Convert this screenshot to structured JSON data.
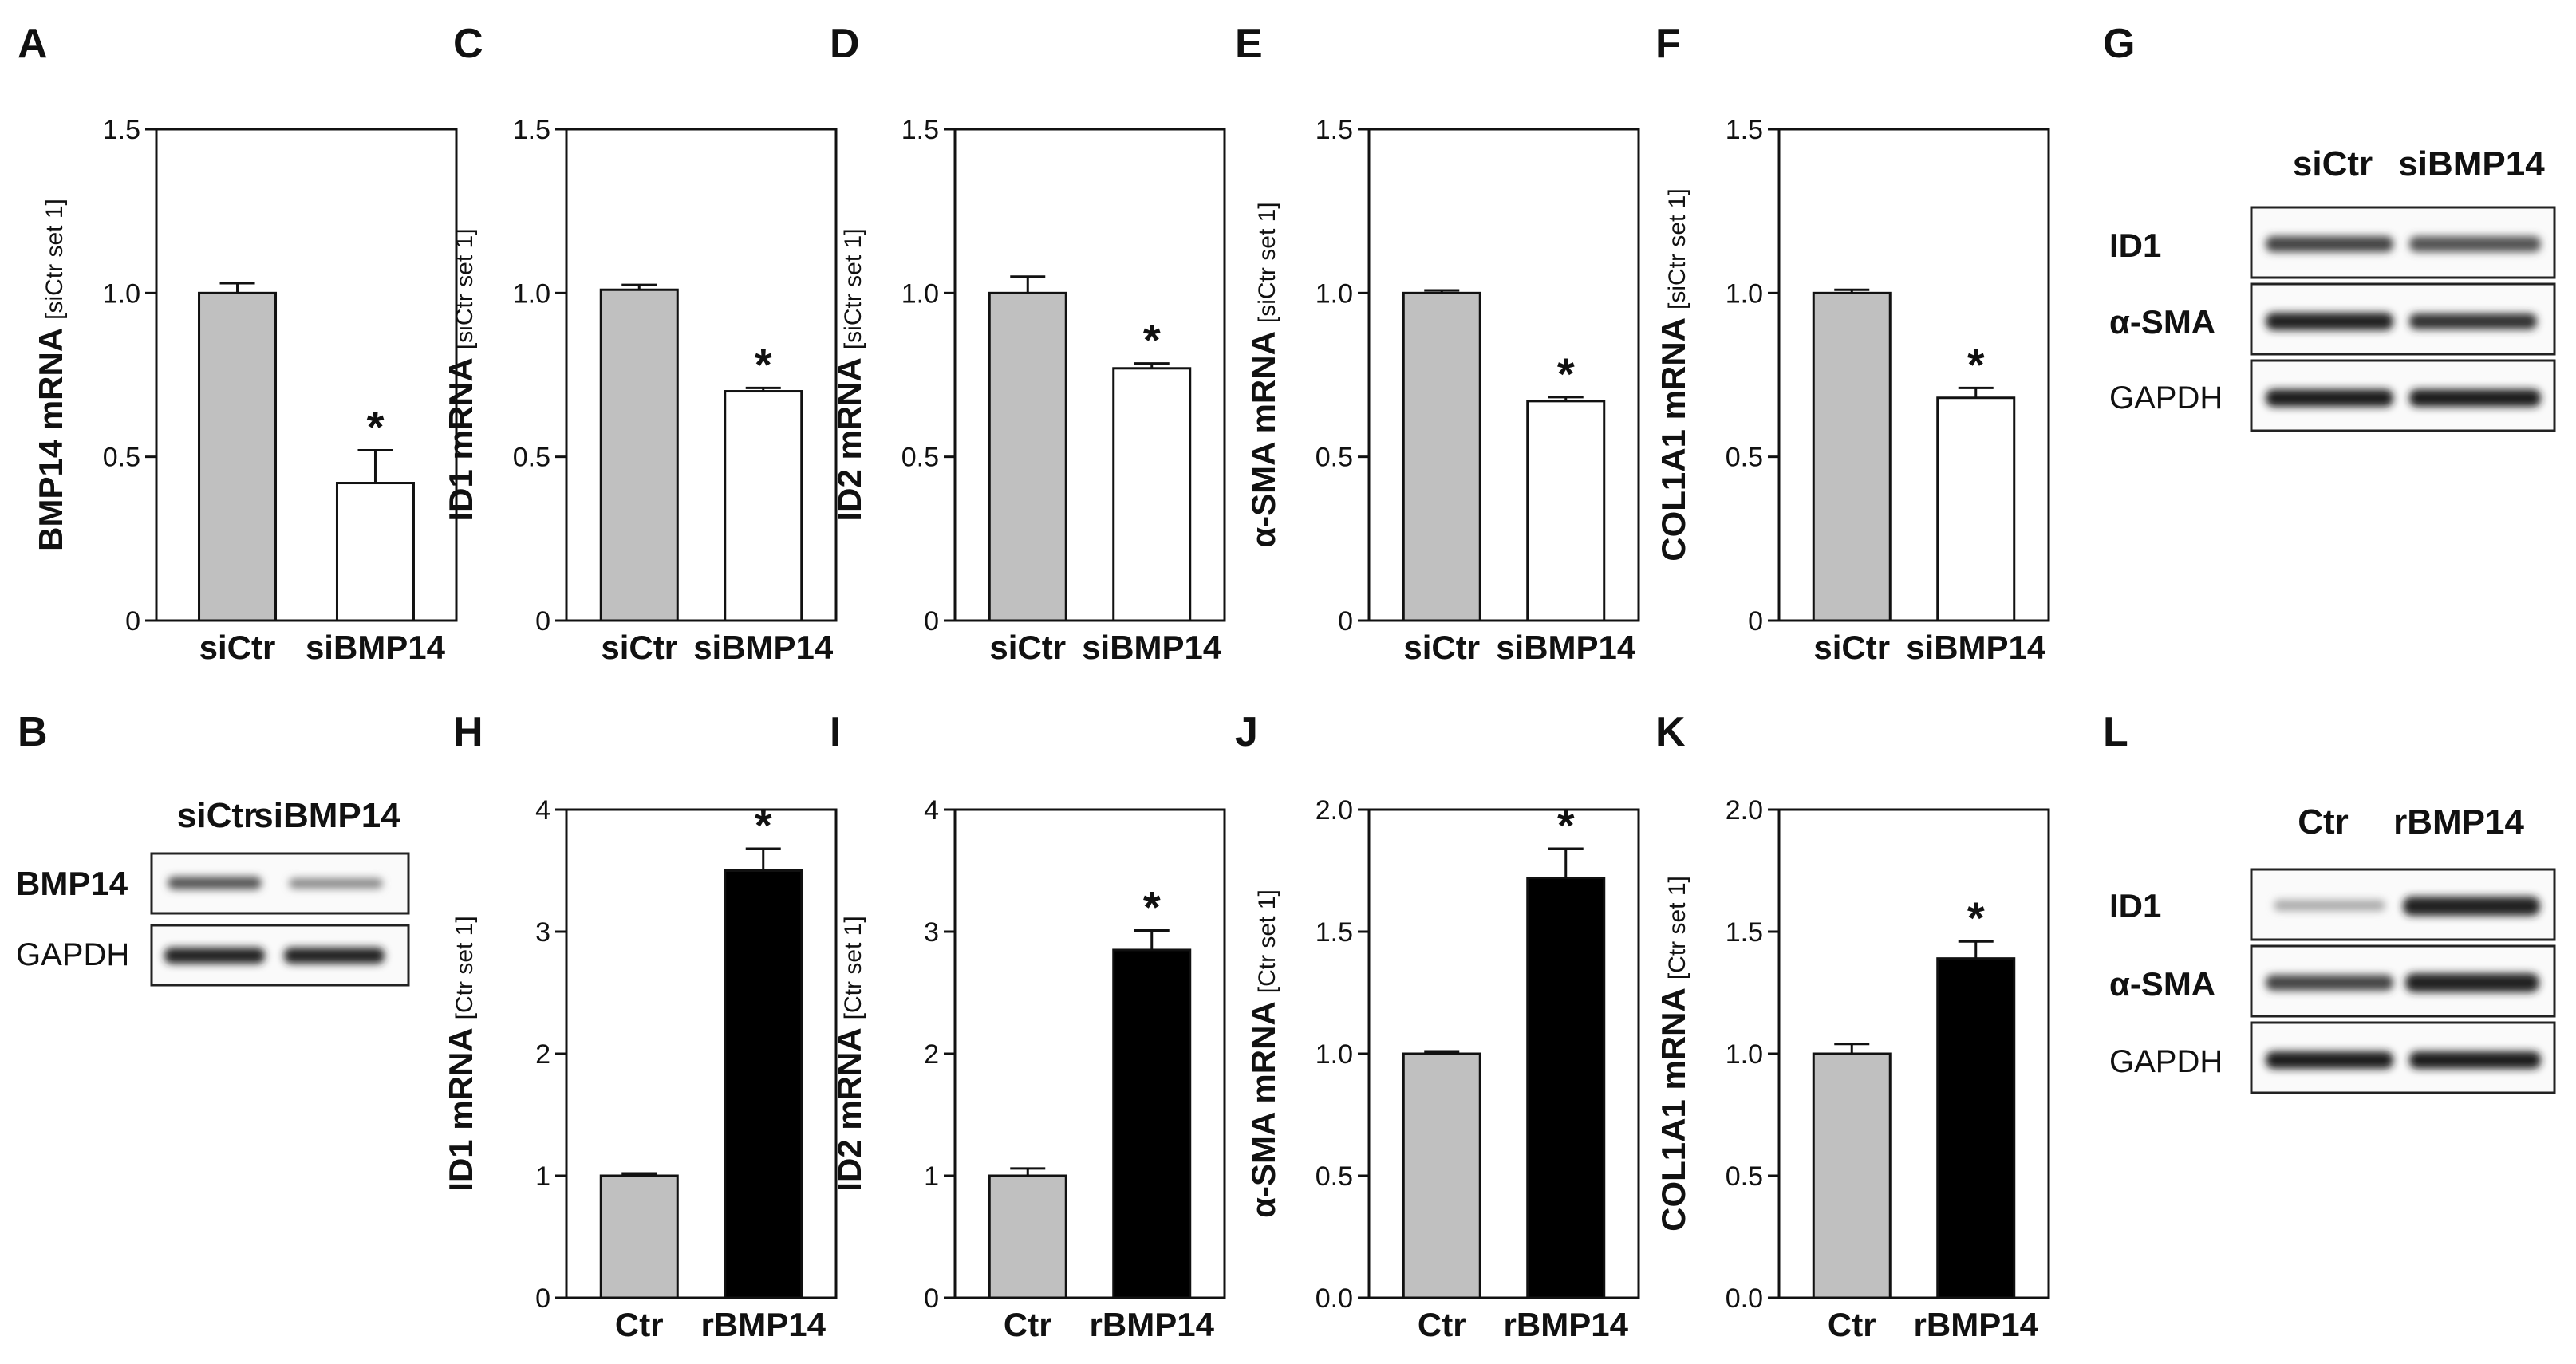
{
  "colors": {
    "control_bar": "#c0c0c0",
    "knockdown_bar": "#ffffff",
    "treated_bar": "#000000",
    "axis": "#111111"
  },
  "panels": {
    "A": "A",
    "B": "B",
    "C": "C",
    "D": "D",
    "E": "E",
    "F": "F",
    "G": "G",
    "H": "H",
    "I": "I",
    "J": "J",
    "K": "K",
    "L": "L"
  },
  "chart_data": [
    {
      "id": "A",
      "type": "bar",
      "categories": [
        "siCtr",
        "siBMP14"
      ],
      "values": [
        1.0,
        0.42
      ],
      "errors": [
        0.03,
        0.1
      ],
      "colors": [
        "#c0c0c0",
        "#ffffff"
      ],
      "significant": [
        false,
        true
      ],
      "ylabel": "BMP14 mRNA",
      "yunit": "[siCtr set 1]",
      "ylim": [
        0,
        1.5
      ],
      "ticks": [
        0,
        0.5,
        1.0,
        1.5
      ],
      "tick_labels": [
        "0",
        "0.5",
        "1.0",
        "1.5"
      ]
    },
    {
      "id": "C",
      "type": "bar",
      "categories": [
        "siCtr",
        "siBMP14"
      ],
      "values": [
        1.01,
        0.7
      ],
      "errors": [
        0.015,
        0.01
      ],
      "colors": [
        "#c0c0c0",
        "#ffffff"
      ],
      "significant": [
        false,
        true
      ],
      "ylabel": "ID1 mRNA",
      "yunit": "[siCtr set 1]",
      "ylim": [
        0,
        1.5
      ],
      "ticks": [
        0,
        0.5,
        1.0,
        1.5
      ],
      "tick_labels": [
        "0",
        "0.5",
        "1.0",
        "1.5"
      ]
    },
    {
      "id": "D",
      "type": "bar",
      "categories": [
        "siCtr",
        "siBMP14"
      ],
      "values": [
        1.0,
        0.77
      ],
      "errors": [
        0.05,
        0.015
      ],
      "colors": [
        "#c0c0c0",
        "#ffffff"
      ],
      "significant": [
        false,
        true
      ],
      "ylabel": "ID2 mRNA",
      "yunit": "[siCtr set 1]",
      "ylim": [
        0,
        1.5
      ],
      "ticks": [
        0,
        0.5,
        1.0,
        1.5
      ],
      "tick_labels": [
        "0",
        "0.5",
        "1.0",
        "1.5"
      ]
    },
    {
      "id": "E",
      "type": "bar",
      "categories": [
        "siCtr",
        "siBMP14"
      ],
      "values": [
        1.0,
        0.67
      ],
      "errors": [
        0.008,
        0.012
      ],
      "colors": [
        "#c0c0c0",
        "#ffffff"
      ],
      "significant": [
        false,
        true
      ],
      "ylabel": "α-SMA mRNA",
      "yunit": "[siCtr set 1]",
      "ylim": [
        0,
        1.5
      ],
      "ticks": [
        0,
        0.5,
        1.0,
        1.5
      ],
      "tick_labels": [
        "0",
        "0.5",
        "1.0",
        "1.5"
      ]
    },
    {
      "id": "F",
      "type": "bar",
      "categories": [
        "siCtr",
        "siBMP14"
      ],
      "values": [
        1.0,
        0.68
      ],
      "errors": [
        0.01,
        0.03
      ],
      "colors": [
        "#c0c0c0",
        "#ffffff"
      ],
      "significant": [
        false,
        true
      ],
      "ylabel": "COL1A1 mRNA",
      "yunit": "[siCtr set 1]",
      "ylim": [
        0,
        1.5
      ],
      "ticks": [
        0,
        0.5,
        1.0,
        1.5
      ],
      "tick_labels": [
        "0",
        "0.5",
        "1.0",
        "1.5"
      ]
    },
    {
      "id": "H",
      "type": "bar",
      "categories": [
        "Ctr",
        "rBMP14"
      ],
      "values": [
        1.0,
        3.5
      ],
      "errors": [
        0.02,
        0.18
      ],
      "colors": [
        "#c0c0c0",
        "#000000"
      ],
      "significant": [
        false,
        true
      ],
      "ylabel": "ID1 mRNA",
      "yunit": "[Ctr set 1]",
      "ylim": [
        0,
        4
      ],
      "ticks": [
        0,
        1,
        2,
        3,
        4
      ],
      "tick_labels": [
        "0",
        "1",
        "2",
        "3",
        "4"
      ]
    },
    {
      "id": "I",
      "type": "bar",
      "categories": [
        "Ctr",
        "rBMP14"
      ],
      "values": [
        1.0,
        2.85
      ],
      "errors": [
        0.06,
        0.16
      ],
      "colors": [
        "#c0c0c0",
        "#000000"
      ],
      "significant": [
        false,
        true
      ],
      "ylabel": "ID2 mRNA",
      "yunit": "[Ctr set 1]",
      "ylim": [
        0,
        4
      ],
      "ticks": [
        0,
        1,
        2,
        3,
        4
      ],
      "tick_labels": [
        "0",
        "1",
        "2",
        "3",
        "4"
      ]
    },
    {
      "id": "J",
      "type": "bar",
      "categories": [
        "Ctr",
        "rBMP14"
      ],
      "values": [
        1.0,
        1.72
      ],
      "errors": [
        0.01,
        0.12
      ],
      "colors": [
        "#c0c0c0",
        "#000000"
      ],
      "significant": [
        false,
        true
      ],
      "ylabel": "α-SMA mRNA",
      "yunit": "[Ctr set 1]",
      "ylim": [
        0,
        2.0
      ],
      "ticks": [
        0,
        0.5,
        1.0,
        1.5,
        2.0
      ],
      "tick_labels": [
        "0.0",
        "0.5",
        "1.0",
        "1.5",
        "2.0"
      ]
    },
    {
      "id": "K",
      "type": "bar",
      "categories": [
        "Ctr",
        "rBMP14"
      ],
      "values": [
        1.0,
        1.39
      ],
      "errors": [
        0.04,
        0.07
      ],
      "colors": [
        "#c0c0c0",
        "#000000"
      ],
      "significant": [
        false,
        true
      ],
      "ylabel": "COL1A1 mRNA",
      "yunit": "[Ctr set 1]",
      "ylim": [
        0,
        2.0
      ],
      "ticks": [
        0,
        0.5,
        1.0,
        1.5,
        2.0
      ],
      "tick_labels": [
        "0.0",
        "0.5",
        "1.0",
        "1.5",
        "2.0"
      ]
    }
  ],
  "blots": {
    "B": {
      "lanes": [
        "siCtr",
        "siBMP14"
      ],
      "rows": [
        {
          "label": "BMP14",
          "bold": true
        },
        {
          "label": "GAPDH",
          "bold": false
        }
      ]
    },
    "G": {
      "lanes": [
        "siCtr",
        "siBMP14"
      ],
      "rows": [
        {
          "label": "ID1",
          "bold": true
        },
        {
          "label": "α-SMA",
          "bold": true
        },
        {
          "label": "GAPDH",
          "bold": false
        }
      ]
    },
    "L": {
      "lanes": [
        "Ctr",
        "rBMP14"
      ],
      "rows": [
        {
          "label": "ID1",
          "bold": true
        },
        {
          "label": "α-SMA",
          "bold": true
        },
        {
          "label": "GAPDH",
          "bold": false
        }
      ]
    }
  },
  "significance_marker": "*"
}
